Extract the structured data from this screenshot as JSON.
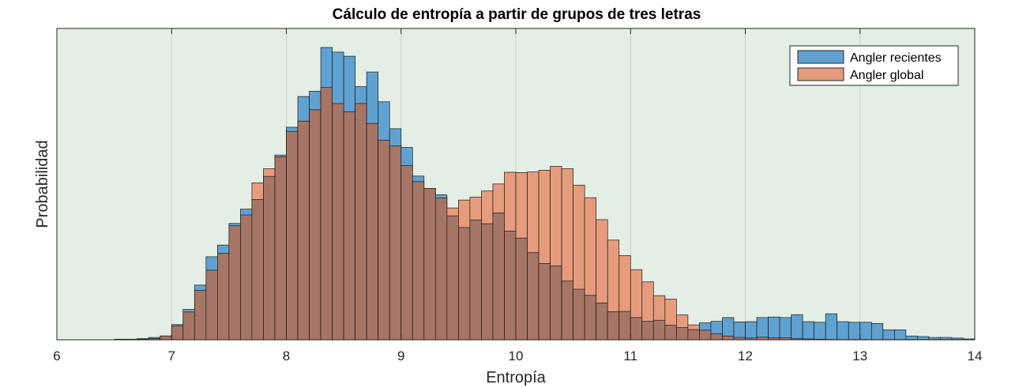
{
  "chart_data": {
    "type": "bar",
    "title": "Cálculo de entropía a partir de grupos de tres letras",
    "xlabel": "Entropía",
    "ylabel": "Probabilidad",
    "xlim": [
      6,
      14
    ],
    "ylim": [
      0,
      1.0
    ],
    "xticks": [
      "6",
      "7",
      "8",
      "9",
      "10",
      "11",
      "12",
      "13",
      "14"
    ],
    "grid": "vertical",
    "legend_position": "top-right",
    "bin_width": 0.1,
    "bin_start": 6.5,
    "colors": {
      "background": "#e3efe4",
      "grid": "#c8d0c8",
      "series_1": "#5fa2d1",
      "series_2": "#e69c7c",
      "overlap": "#a77566"
    },
    "series": [
      {
        "name": "Angler recientes",
        "values": [
          0.002,
          0.002,
          0.004,
          0.008,
          0.013,
          0.052,
          0.104,
          0.187,
          0.284,
          0.324,
          0.398,
          0.447,
          0.48,
          0.559,
          0.632,
          0.727,
          0.832,
          0.85,
          1.0,
          0.984,
          0.97,
          0.866,
          0.916,
          0.814,
          0.722,
          0.658,
          0.56,
          0.518,
          0.496,
          0.424,
          0.384,
          0.41,
          0.397,
          0.434,
          0.372,
          0.348,
          0.298,
          0.261,
          0.253,
          0.201,
          0.173,
          0.152,
          0.126,
          0.096,
          0.097,
          0.076,
          0.063,
          0.067,
          0.05,
          0.042,
          0.035,
          0.058,
          0.063,
          0.076,
          0.061,
          0.062,
          0.076,
          0.078,
          0.076,
          0.086,
          0.062,
          0.06,
          0.089,
          0.062,
          0.06,
          0.06,
          0.056,
          0.034,
          0.034,
          0.013,
          0.011,
          0.008,
          0.008,
          0.006,
          0.003
        ]
      },
      {
        "name": "Angler global",
        "values": [
          0.001,
          0.001,
          0.002,
          0.004,
          0.013,
          0.048,
          0.095,
          0.169,
          0.238,
          0.296,
          0.39,
          0.427,
          0.537,
          0.585,
          0.626,
          0.713,
          0.748,
          0.787,
          0.863,
          0.808,
          0.78,
          0.808,
          0.74,
          0.683,
          0.663,
          0.596,
          0.541,
          0.518,
          0.485,
          0.451,
          0.478,
          0.488,
          0.509,
          0.533,
          0.573,
          0.572,
          0.574,
          0.58,
          0.593,
          0.585,
          0.529,
          0.486,
          0.411,
          0.341,
          0.288,
          0.24,
          0.198,
          0.151,
          0.139,
          0.085,
          0.051,
          0.033,
          0.021,
          0.013,
          0.008,
          0.006,
          0.009,
          0.007,
          0.007,
          0.004,
          0.003,
          0.002,
          0.001,
          0.001,
          0.001,
          0.001,
          0.001,
          0.001,
          0.001,
          0.001,
          0.001,
          0.001,
          0.001,
          0.001,
          0.001
        ]
      }
    ]
  }
}
